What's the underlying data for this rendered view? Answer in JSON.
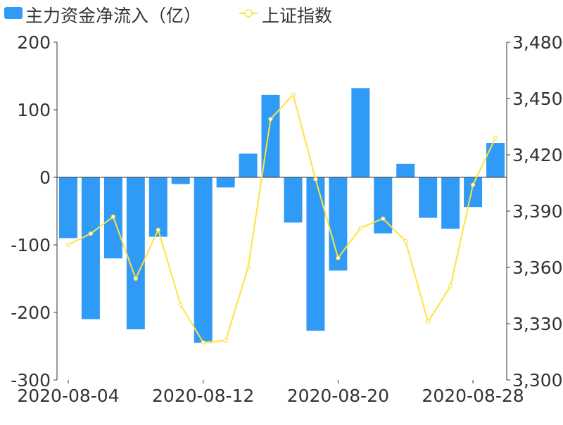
{
  "colors": {
    "bar": "#2F9BF7",
    "line": "#FFE23C",
    "axis": "#333333"
  },
  "chart_data": {
    "type": "bar",
    "title": "",
    "legend": {
      "placement": "top-left",
      "entries": [
        "主力资金净流入（亿）",
        "上证指数"
      ]
    },
    "x": [
      "2020-08-04",
      "2020-08-05",
      "2020-08-06",
      "2020-08-07",
      "2020-08-10",
      "2020-08-11",
      "2020-08-12",
      "2020-08-13",
      "2020-08-14",
      "2020-08-17",
      "2020-08-18",
      "2020-08-19",
      "2020-08-20",
      "2020-08-21",
      "2020-08-24",
      "2020-08-25",
      "2020-08-26",
      "2020-08-27",
      "2020-08-28",
      "2020-08-31"
    ],
    "x_tick_labels": [
      "2020-08-04",
      "2020-08-12",
      "2020-08-20",
      "2020-08-28"
    ],
    "x_tick_indices": [
      0,
      6,
      12,
      18
    ],
    "series": [
      {
        "name": "主力资金净流入（亿）",
        "type": "bar",
        "axis": "left",
        "values": [
          -90,
          -210,
          -120,
          -225,
          -88,
          -10,
          -245,
          -15,
          35,
          122,
          -67,
          -227,
          -138,
          132,
          -83,
          20,
          -60,
          -76,
          -44,
          51
        ]
      },
      {
        "name": "上证指数",
        "type": "line",
        "axis": "right",
        "values": [
          3372,
          3378,
          3387,
          3354,
          3380,
          3340,
          3320,
          3321,
          3360,
          3439,
          3452,
          3407,
          3365,
          3381,
          3386,
          3374,
          3331,
          3350,
          3404,
          3429
        ]
      }
    ],
    "y_left": {
      "range": [
        -300,
        200
      ],
      "ticks": [
        200,
        100,
        0,
        -100,
        -200,
        -300
      ],
      "tick_labels": [
        "200",
        "100",
        "0",
        "-100",
        "-200",
        "-300"
      ]
    },
    "y_right": {
      "range": [
        3300,
        3480
      ],
      "ticks": [
        3480,
        3450,
        3420,
        3390,
        3360,
        3330,
        3300
      ],
      "tick_labels": [
        "3,480",
        "3,450",
        "3,420",
        "3,390",
        "3,360",
        "3,330",
        "3,300"
      ]
    },
    "grid": false
  }
}
